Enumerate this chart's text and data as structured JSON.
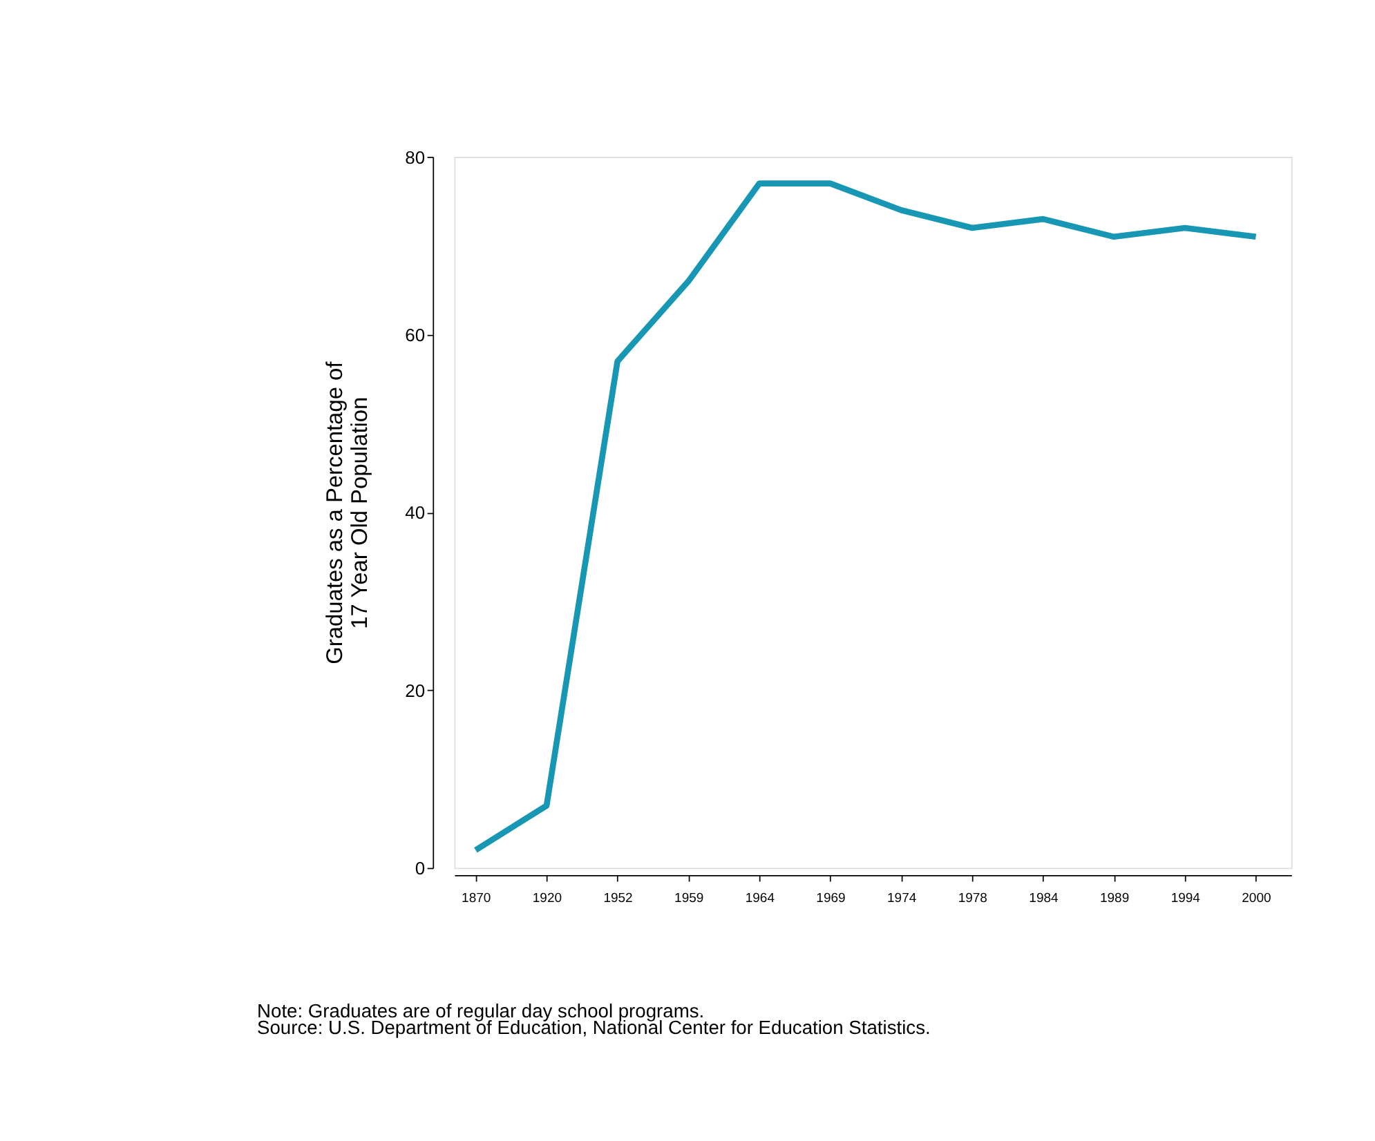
{
  "chart_data": {
    "type": "line",
    "categories": [
      "1870",
      "1920",
      "1952",
      "1959",
      "1964",
      "1969",
      "1974",
      "1978",
      "1984",
      "1989",
      "1994",
      "2000"
    ],
    "series": [
      {
        "color": "#1797b3",
        "values": [
          2,
          7,
          57,
          66,
          77,
          77,
          74,
          72,
          73,
          71,
          72,
          71
        ]
      }
    ],
    "ylabel": "Graduates as a Percentage of\n17 Year Old Population",
    "ylim": [
      0,
      80
    ],
    "yticks": [
      0,
      20,
      40,
      60,
      80
    ],
    "grid": false,
    "marker": "none",
    "line_style": "solid",
    "annotations": [
      "Note: Graduates are of regular day school programs.",
      "Source: U.S. Department of Education, National Center for Education Statistics."
    ]
  }
}
